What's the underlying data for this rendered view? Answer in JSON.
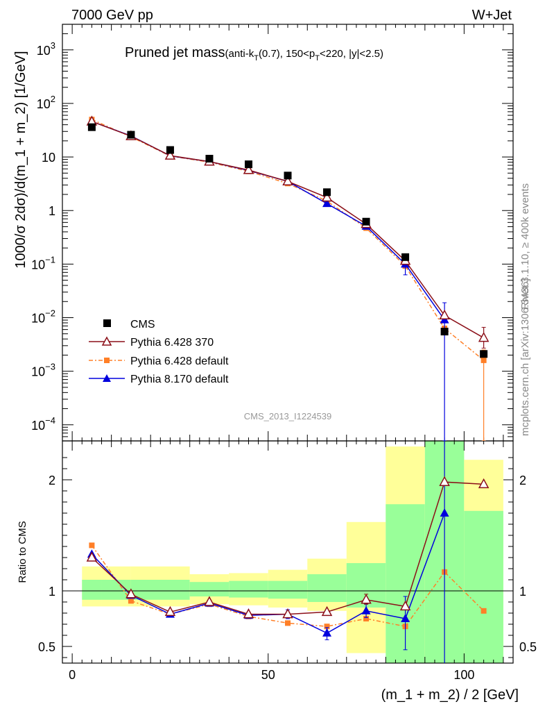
{
  "header": {
    "left": "7000 GeV pp",
    "right": "W+Jet"
  },
  "plot_title": {
    "main": "Pruned jet mass",
    "sub_pre": "(anti-k",
    "sub_T1": "T",
    "sub_mid": "(0.7), 150<p",
    "sub_T2": "T",
    "sub_post": "<220, |y|<2.5)"
  },
  "side_text": {
    "rivet": "Rivet 3.1.10, ≥ 400k events",
    "site": "mcplots.cern.ch [arXiv:1306.3436]"
  },
  "analysis_label": "CMS_2013_I1224539",
  "colors": {
    "cms": "#000000",
    "p6_370": "#8b0f18",
    "p6_default": "#ff7f27",
    "p8": "#0000dd",
    "band_inner": "#99ff99",
    "band_outer": "#ffff99"
  },
  "chart_data": [
    {
      "type": "scatter",
      "panel": "main",
      "yscale": "log",
      "xlabel": "(m_1 + m_2) / 2 [GeV]",
      "ylabel": "1000/σ 2dσ)/d(m_1 + m_2) [1/GeV]",
      "xlim": [
        -2.5,
        112.5
      ],
      "ylim": [
        5e-05,
        3000
      ],
      "y_ticks": [
        {
          "v": 0.0001,
          "m": "10",
          "e": "−4"
        },
        {
          "v": 0.001,
          "m": "10",
          "e": "−3"
        },
        {
          "v": 0.01,
          "m": "10",
          "e": "−2"
        },
        {
          "v": 0.1,
          "m": "10",
          "e": "−1"
        },
        {
          "v": 1,
          "m": "1",
          "e": ""
        },
        {
          "v": 10,
          "m": "10",
          "e": ""
        },
        {
          "v": 100,
          "m": "10",
          "e": "2"
        },
        {
          "v": 1000,
          "m": "10",
          "e": "3"
        }
      ],
      "x": [
        5,
        15,
        25,
        35,
        45,
        55,
        65,
        75,
        85,
        95,
        105
      ],
      "series": [
        {
          "name": "CMS",
          "key": "cms",
          "values": [
            36,
            26,
            13.5,
            9.3,
            7.3,
            4.5,
            2.2,
            0.62,
            0.135,
            0.0055,
            0.0021
          ]
        },
        {
          "name": "Pythia 6.428 370",
          "key": "p6_370",
          "values": [
            46,
            24.5,
            10.6,
            8.2,
            5.7,
            3.5,
            1.75,
            0.56,
            0.115,
            0.011,
            0.0042
          ],
          "err": [
            null,
            null,
            null,
            null,
            null,
            null,
            null,
            null,
            null,
            null,
            [
              0.0027,
              0.0066
            ]
          ]
        },
        {
          "name": "Pythia 6.428 default",
          "key": "p6_default",
          "values": [
            50,
            23.8,
            10.4,
            8.0,
            5.4,
            3.2,
            1.5,
            0.47,
            0.092,
            0.0063,
            0.0016
          ],
          "err": [
            null,
            null,
            null,
            null,
            null,
            null,
            null,
            null,
            null,
            null,
            [
              5e-05,
              0.0025
            ]
          ]
        },
        {
          "name": "Pythia 8.170 default",
          "key": "p8",
          "values": [
            46,
            24.8,
            10.5,
            8.2,
            5.6,
            3.5,
            1.35,
            0.51,
            0.1,
            0.0091,
            null
          ],
          "err": [
            null,
            null,
            null,
            null,
            null,
            null,
            null,
            null,
            [
              0.063,
              0.13
            ],
            [
              5e-05,
              0.019
            ],
            null
          ]
        }
      ],
      "legend": [
        "CMS",
        "Pythia 6.428 370",
        "Pythia 6.428 default",
        "Pythia 8.170 default"
      ]
    },
    {
      "type": "line",
      "panel": "ratio",
      "ylabel": "Ratio to CMS",
      "xlim": [
        -2.5,
        112.5
      ],
      "ylim": [
        0.35,
        2.35
      ],
      "y_ticks": [
        0.5,
        1,
        2
      ],
      "x_ticks": [
        0,
        50,
        100
      ],
      "bins": [
        [
          2.5,
          7.5
        ],
        [
          7.5,
          15
        ],
        [
          15,
          30
        ],
        [
          30,
          40
        ],
        [
          40,
          50
        ],
        [
          50,
          60
        ],
        [
          60,
          70
        ],
        [
          70,
          80
        ],
        [
          80,
          90
        ],
        [
          90,
          100
        ],
        [
          100,
          110
        ]
      ],
      "band_inner": [
        [
          0.92,
          1.1
        ],
        [
          0.92,
          1.1
        ],
        [
          0.92,
          1.1
        ],
        [
          0.95,
          1.08
        ],
        [
          0.94,
          1.09
        ],
        [
          0.93,
          1.09
        ],
        [
          0.9,
          1.15
        ],
        [
          0.85,
          1.25
        ],
        [
          0.35,
          1.78
        ],
        [
          0.35,
          2.35
        ],
        [
          0.35,
          1.72
        ]
      ],
      "band_outer": [
        [
          0.86,
          1.22
        ],
        [
          0.86,
          1.22
        ],
        [
          0.86,
          1.22
        ],
        [
          0.88,
          1.15
        ],
        [
          0.87,
          1.16
        ],
        [
          0.85,
          1.19
        ],
        [
          0.82,
          1.29
        ],
        [
          0.44,
          1.62
        ],
        [
          0.35,
          2.3
        ],
        [
          0.35,
          2.35
        ],
        [
          0.35,
          2.18
        ]
      ],
      "x": [
        5,
        15,
        25,
        35,
        45,
        55,
        65,
        75,
        85,
        95,
        105
      ],
      "series": [
        {
          "name": "Pythia 6.428 370",
          "key": "p6_370",
          "values": [
            1.3,
            0.97,
            0.81,
            0.9,
            0.79,
            0.79,
            0.81,
            0.92,
            0.86,
            1.98,
            1.96
          ],
          "err": [
            null,
            null,
            null,
            null,
            null,
            null,
            null,
            [
              0.88,
              0.97
            ],
            null,
            null,
            null
          ]
        },
        {
          "name": "Pythia 6.428 default",
          "key": "p6_default",
          "values": [
            1.41,
            0.91,
            0.79,
            0.88,
            0.77,
            0.71,
            0.68,
            0.75,
            0.68,
            1.17,
            0.82
          ]
        },
        {
          "name": "Pythia 8.170 default",
          "key": "p8",
          "values": [
            1.33,
            0.96,
            0.79,
            0.89,
            0.78,
            0.79,
            0.62,
            0.82,
            0.75,
            1.7,
            null
          ],
          "err": [
            null,
            null,
            null,
            null,
            null,
            [
              0.75,
              0.83
            ],
            [
              0.56,
              0.67
            ],
            [
              0.76,
              0.88
            ],
            [
              0.47,
              0.95
            ],
            [
              0.3,
              2.4
            ],
            null
          ]
        }
      ]
    }
  ]
}
